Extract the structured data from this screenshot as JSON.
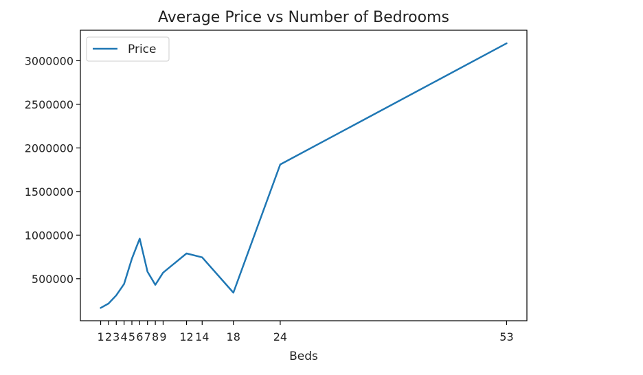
{
  "chart_data": {
    "type": "line",
    "title": "Average Price vs Number of Bedrooms",
    "xlabel": "Beds",
    "ylabel": "",
    "x": [
      1,
      2,
      3,
      4,
      5,
      6,
      7,
      8,
      9,
      12,
      14,
      18,
      24,
      53
    ],
    "x_tick_labels": [
      "1",
      "2",
      "3",
      "4",
      "5",
      "6",
      "7",
      "8",
      "9",
      "12",
      "14",
      "18",
      "24",
      "53"
    ],
    "series": [
      {
        "name": "Price",
        "color": "#1f77b4",
        "values": [
          165000,
          215000,
          310000,
          440000,
          730000,
          960000,
          580000,
          430000,
          570000,
          790000,
          745000,
          340000,
          1810000,
          3200000
        ]
      }
    ],
    "y_ticks": [
      500000,
      1000000,
      1500000,
      2000000,
      2500000,
      3000000
    ],
    "y_tick_labels": [
      "500000",
      "1000000",
      "1500000",
      "2000000",
      "2500000",
      "3000000"
    ],
    "xlim": [
      -1.6,
      55.6
    ],
    "ylim": [
      18000,
      3350000
    ],
    "legend": {
      "position": "top-left",
      "entries": [
        "Price"
      ]
    },
    "grid": false
  }
}
